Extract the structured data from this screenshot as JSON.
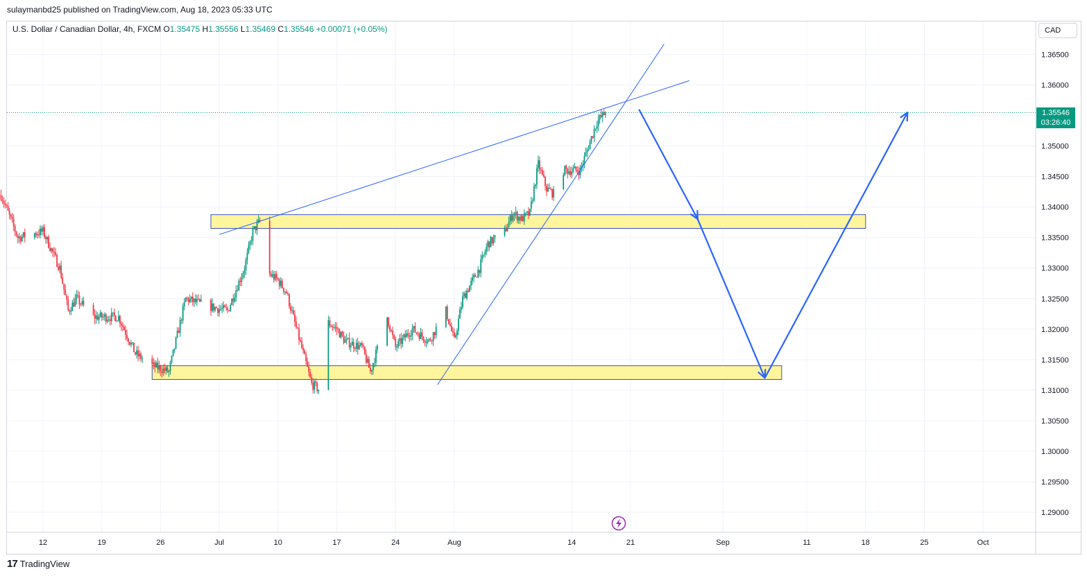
{
  "caption": "sulaymanbd25 published on TradingView.com, Aug 18, 2023 05:33 UTC",
  "symbol": {
    "name": "U.S. Dollar / Canadian Dollar, 4h, FXCM",
    "o_label": "O",
    "o": "1.35475",
    "h_label": "H",
    "h": "1.35556",
    "l_label": "L",
    "l": "1.35469",
    "c_label": "C",
    "c": "1.35546",
    "change": "+0.00071 (+0.05%)"
  },
  "currency": "CAD",
  "last_price": {
    "value": "1.35546",
    "countdown": "03:26:40"
  },
  "brand": "TradingView",
  "colors": {
    "up": "#089981",
    "down": "#f23645",
    "zone_fill": "#fff59d",
    "zone_border": "#3a53c0",
    "line": "#2962ff",
    "price_line": "#089981"
  },
  "chart_data": {
    "type": "candlestick",
    "timeframe": "4h",
    "y_ticks": [
      "1.36500",
      "1.36000",
      "1.35500",
      "1.35000",
      "1.34500",
      "1.34000",
      "1.33500",
      "1.33000",
      "1.32500",
      "1.32000",
      "1.31500",
      "1.31000",
      "1.30500",
      "1.30000",
      "1.29500",
      "1.29000"
    ],
    "y_range": [
      1.2858,
      1.3685
    ],
    "x_ticks": [
      {
        "label": "12",
        "date": "2023-06-12"
      },
      {
        "label": "19",
        "date": "2023-06-19"
      },
      {
        "label": "26",
        "date": "2023-06-26"
      },
      {
        "label": "Jul",
        "date": "2023-07-03"
      },
      {
        "label": "10",
        "date": "2023-07-10"
      },
      {
        "label": "17",
        "date": "2023-07-17"
      },
      {
        "label": "24",
        "date": "2023-07-24"
      },
      {
        "label": "Aug",
        "date": "2023-07-31"
      },
      {
        "label": "14",
        "date": "2023-08-14"
      },
      {
        "label": "21",
        "date": "2023-08-21"
      },
      {
        "label": "Sep",
        "date": "2023-09-01"
      },
      {
        "label": "11",
        "date": "2023-09-11"
      },
      {
        "label": "18",
        "date": "2023-09-18"
      },
      {
        "label": "25",
        "date": "2023-09-25"
      },
      {
        "label": "Oct",
        "date": "2023-10-02"
      }
    ],
    "price_path": [
      {
        "date": "2023-06-07",
        "close": 1.342
      },
      {
        "date": "2023-06-09",
        "close": 1.335
      },
      {
        "date": "2023-06-12",
        "close": 1.336
      },
      {
        "date": "2023-06-14",
        "close": 1.33
      },
      {
        "date": "2023-06-15",
        "close": 1.323
      },
      {
        "date": "2023-06-16",
        "close": 1.325
      },
      {
        "date": "2023-06-18",
        "close": 1.322
      },
      {
        "date": "2023-06-19",
        "close": 1.322
      },
      {
        "date": "2023-06-21",
        "close": 1.322
      },
      {
        "date": "2023-06-23",
        "close": 1.316
      },
      {
        "date": "2023-06-25",
        "close": 1.314
      },
      {
        "date": "2023-06-27",
        "close": 1.313
      },
      {
        "date": "2023-06-29",
        "close": 1.325
      },
      {
        "date": "2023-07-01",
        "close": 1.324
      },
      {
        "date": "2023-07-04",
        "close": 1.323
      },
      {
        "date": "2023-07-06",
        "close": 1.33
      },
      {
        "date": "2023-07-07",
        "close": 1.336
      },
      {
        "date": "2023-07-08",
        "close": 1.338
      },
      {
        "date": "2023-07-09",
        "close": 1.329
      },
      {
        "date": "2023-07-10",
        "close": 1.328
      },
      {
        "date": "2023-07-11",
        "close": 1.326
      },
      {
        "date": "2023-07-12",
        "close": 1.321
      },
      {
        "date": "2023-07-13",
        "close": 1.316
      },
      {
        "date": "2023-07-14",
        "close": 1.311
      },
      {
        "date": "2023-07-15",
        "close": 1.31
      },
      {
        "date": "2023-07-16",
        "close": 1.321
      },
      {
        "date": "2023-07-17",
        "close": 1.32
      },
      {
        "date": "2023-07-18",
        "close": 1.318
      },
      {
        "date": "2023-07-20",
        "close": 1.317
      },
      {
        "date": "2023-07-21",
        "close": 1.313
      },
      {
        "date": "2023-07-23",
        "close": 1.322
      },
      {
        "date": "2023-07-24",
        "close": 1.317
      },
      {
        "date": "2023-07-26",
        "close": 1.32
      },
      {
        "date": "2023-07-28",
        "close": 1.318
      },
      {
        "date": "2023-07-30",
        "close": 1.323
      },
      {
        "date": "2023-07-31",
        "close": 1.318
      },
      {
        "date": "2023-08-01",
        "close": 1.325
      },
      {
        "date": "2023-08-03",
        "close": 1.33
      },
      {
        "date": "2023-08-04",
        "close": 1.334
      },
      {
        "date": "2023-08-06",
        "close": 1.336
      },
      {
        "date": "2023-08-07",
        "close": 1.339
      },
      {
        "date": "2023-08-08",
        "close": 1.338
      },
      {
        "date": "2023-08-09",
        "close": 1.339
      },
      {
        "date": "2023-08-10",
        "close": 1.347
      },
      {
        "date": "2023-08-11",
        "close": 1.343
      },
      {
        "date": "2023-08-12",
        "close": 1.342
      },
      {
        "date": "2023-08-13",
        "close": 1.346
      },
      {
        "date": "2023-08-14",
        "close": 1.346
      },
      {
        "date": "2023-08-15",
        "close": 1.346
      },
      {
        "date": "2023-08-16",
        "close": 1.35
      },
      {
        "date": "2023-08-17",
        "close": 1.354
      },
      {
        "date": "2023-08-18",
        "close": 1.35546
      }
    ],
    "zones": [
      {
        "date_start": "2023-07-02",
        "date_end": "2023-09-18",
        "top": 1.33875,
        "bottom": 1.3365
      },
      {
        "date_start": "2023-06-25",
        "date_end": "2023-09-08",
        "top": 1.314,
        "bottom": 1.31175
      }
    ],
    "trendlines": [
      {
        "from": {
          "date": "2023-07-03",
          "price": 1.3355
        },
        "to": {
          "date": "2023-08-28",
          "price": 1.3607
        }
      },
      {
        "from": {
          "date": "2023-07-29",
          "price": 1.3109
        },
        "to": {
          "date": "2023-08-25",
          "price": 1.3667
        }
      }
    ],
    "projection": [
      {
        "date": "2023-08-22",
        "price": 1.356
      },
      {
        "date": "2023-08-29",
        "price": 1.338
      },
      {
        "date": "2023-09-06",
        "price": 1.312
      },
      {
        "date": "2023-09-23",
        "price": 1.3555
      }
    ]
  }
}
